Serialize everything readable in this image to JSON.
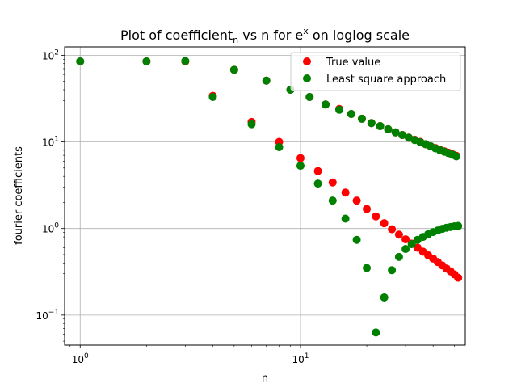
{
  "chart_data": {
    "type": "scatter",
    "title_main": "Plot of coefficient",
    "title_sub": "n",
    "title_mid": " vs n for e",
    "title_sup": "x",
    "title_end": " on loglog scale",
    "xlabel": "n",
    "ylabel": "fourier coefficients",
    "xscale": "log",
    "yscale": "log",
    "xlim": [
      0.85,
      56
    ],
    "ylim": [
      0.045,
      125
    ],
    "grid": true,
    "legend_position": "top-right",
    "x_ticks": [
      {
        "value": 1,
        "base": "10",
        "exp": "0"
      },
      {
        "value": 10,
        "base": "10",
        "exp": "1"
      }
    ],
    "y_ticks": [
      {
        "value": 0.1,
        "base": "10",
        "exp": "−1"
      },
      {
        "value": 1,
        "base": "10",
        "exp": "0"
      },
      {
        "value": 10,
        "base": "10",
        "exp": "1"
      },
      {
        "value": 100,
        "base": "10",
        "exp": "2"
      }
    ],
    "series": [
      {
        "name": "True value",
        "color": "#ff0000",
        "points": [
          [
            1,
            85
          ],
          [
            2,
            85
          ],
          [
            3,
            85
          ],
          [
            4,
            34
          ],
          [
            5,
            68
          ],
          [
            6,
            17
          ],
          [
            7,
            51
          ],
          [
            8,
            10
          ],
          [
            9,
            40
          ],
          [
            10,
            6.5
          ],
          [
            11,
            33
          ],
          [
            12,
            4.6
          ],
          [
            13,
            27
          ],
          [
            14,
            3.4
          ],
          [
            15,
            24
          ],
          [
            16,
            2.6
          ],
          [
            17,
            21
          ],
          [
            18,
            2.1
          ],
          [
            19,
            18.5
          ],
          [
            20,
            1.68
          ],
          [
            21,
            16.5
          ],
          [
            22,
            1.38
          ],
          [
            23,
            15.2
          ],
          [
            24,
            1.15
          ],
          [
            25,
            14
          ],
          [
            26,
            0.98
          ],
          [
            27,
            12.9
          ],
          [
            28,
            0.85
          ],
          [
            29,
            12
          ],
          [
            30,
            0.75
          ],
          [
            31,
            11.2
          ],
          [
            32,
            0.67
          ],
          [
            33,
            10.6
          ],
          [
            34,
            0.6
          ],
          [
            35,
            10
          ],
          [
            36,
            0.54
          ],
          [
            37,
            9.4
          ],
          [
            38,
            0.49
          ],
          [
            39,
            8.9
          ],
          [
            40,
            0.45
          ],
          [
            41,
            8.5
          ],
          [
            42,
            0.41
          ],
          [
            43,
            8.1
          ],
          [
            44,
            0.375
          ],
          [
            45,
            7.8
          ],
          [
            46,
            0.345
          ],
          [
            47,
            7.5
          ],
          [
            48,
            0.32
          ],
          [
            49,
            7.2
          ],
          [
            50,
            0.295
          ],
          [
            51,
            6.9
          ],
          [
            52,
            0.27
          ]
        ]
      },
      {
        "name": "Least square approach",
        "color": "#008000",
        "points": [
          [
            1,
            85
          ],
          [
            2,
            85
          ],
          [
            3,
            86
          ],
          [
            4,
            33
          ],
          [
            5,
            68
          ],
          [
            6,
            16
          ],
          [
            7,
            51
          ],
          [
            8,
            8.7
          ],
          [
            9,
            40
          ],
          [
            10,
            5.3
          ],
          [
            11,
            33
          ],
          [
            12,
            3.3
          ],
          [
            13,
            27
          ],
          [
            14,
            2.1
          ],
          [
            15,
            23.5
          ],
          [
            16,
            1.3
          ],
          [
            17,
            21
          ],
          [
            18,
            0.74
          ],
          [
            19,
            18.5
          ],
          [
            20,
            0.35
          ],
          [
            21,
            16.5
          ],
          [
            22,
            0.063
          ],
          [
            23,
            15.2
          ],
          [
            24,
            0.16
          ],
          [
            25,
            14
          ],
          [
            26,
            0.33
          ],
          [
            27,
            12.9
          ],
          [
            28,
            0.47
          ],
          [
            29,
            12
          ],
          [
            30,
            0.58
          ],
          [
            31,
            11.2
          ],
          [
            32,
            0.66
          ],
          [
            33,
            10.5
          ],
          [
            34,
            0.74
          ],
          [
            35,
            9.9
          ],
          [
            36,
            0.8
          ],
          [
            37,
            9.4
          ],
          [
            38,
            0.86
          ],
          [
            39,
            8.9
          ],
          [
            40,
            0.91
          ],
          [
            41,
            8.4
          ],
          [
            42,
            0.95
          ],
          [
            43,
            8.0
          ],
          [
            44,
            0.99
          ],
          [
            45,
            7.7
          ],
          [
            46,
            1.02
          ],
          [
            47,
            7.4
          ],
          [
            48,
            1.04
          ],
          [
            49,
            7.1
          ],
          [
            50,
            1.06
          ],
          [
            51,
            6.8
          ],
          [
            52,
            1.07
          ]
        ]
      }
    ]
  }
}
